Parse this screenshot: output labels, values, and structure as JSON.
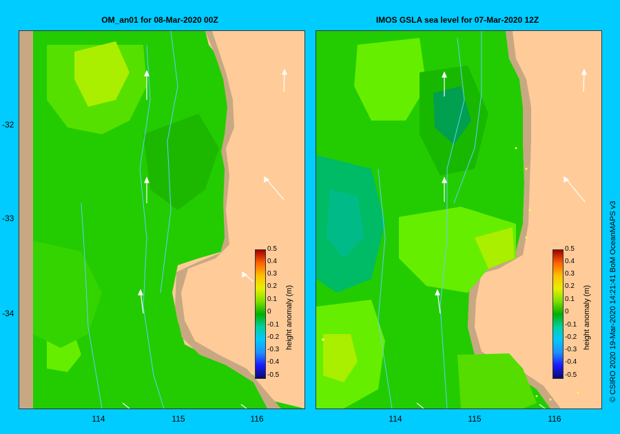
{
  "left_panel": {
    "title": "OM_an01  for 08-Mar-2020 00Z"
  },
  "right_panel": {
    "title": "IMOS  GSLA sea level   for 07-Mar-2020 12Z"
  },
  "y_ticks": [
    "-32",
    "-33",
    "-34"
  ],
  "x_ticks": [
    "114",
    "115",
    "116"
  ],
  "colorbar": {
    "title": "height anomaly (m)",
    "labels": [
      "0.5",
      "0.4",
      "0.3",
      "0.2",
      "0.1",
      "0",
      "-0.1",
      "-0.2",
      "-0.3",
      "-0.4",
      "-0.5"
    ]
  },
  "credit": "© CSIRO 2020   19-Mar-2020 14:21:41  BoM OceanMAPS v3",
  "colors": {
    "background": "#00CCFF",
    "land": "#FFCC99",
    "shelf": "#C8A882",
    "green": "#22CC00",
    "light_green": "#66EE00",
    "yellow_green": "#AAEE00",
    "teal": "#00BB77",
    "current_vector": "#FFFFFF"
  }
}
